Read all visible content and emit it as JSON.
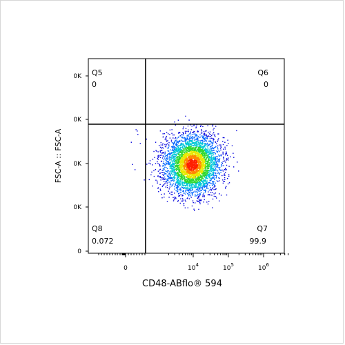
{
  "chart_data": {
    "type": "scatter",
    "xlabel": "CD48-ABflo® 594",
    "ylabel": "FSC-A :: FSC-A",
    "x_scale": "biexponential",
    "x_tick_labels": [
      "0",
      "10",
      "4",
      "10",
      "5",
      "10",
      "6"
    ],
    "x_ticks": [
      {
        "value": 0,
        "base": "0",
        "exp": ""
      },
      {
        "value": 10000,
        "base": "10",
        "exp": "4"
      },
      {
        "value": 100000,
        "base": "10",
        "exp": "5"
      },
      {
        "value": 1000000,
        "base": "10",
        "exp": "6"
      }
    ],
    "y_tick_labels": [
      "0",
      "0K",
      "0K",
      "0K",
      "0K"
    ],
    "quadrants": [
      {
        "name": "Q5",
        "value": "0",
        "position": "top-left"
      },
      {
        "name": "Q6",
        "value": "0",
        "position": "top-right"
      },
      {
        "name": "Q7",
        "value": "99.9",
        "position": "bottom-right"
      },
      {
        "name": "Q8",
        "value": "0.072",
        "position": "bottom-left"
      }
    ],
    "density_colors": [
      "#0000dd",
      "#0066ff",
      "#00c8d8",
      "#30d830",
      "#e8e800",
      "#ff8800",
      "#ff2000"
    ],
    "grid": false,
    "legend": "none"
  }
}
